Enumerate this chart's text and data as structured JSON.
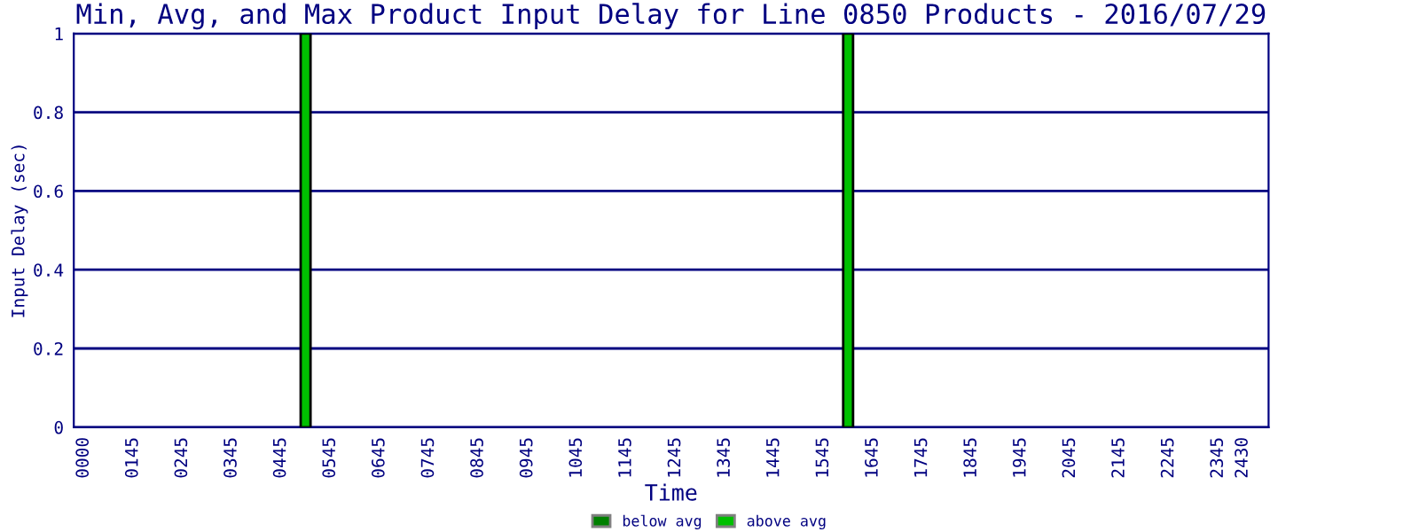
{
  "chart_data": {
    "type": "bar",
    "title": "Min, Avg, and Max Product Input Delay for Line 0850 Products - 2016/07/29",
    "xlabel": "Time",
    "ylabel": "Input Delay (sec)",
    "categories": [
      "0000",
      null,
      "0145",
      null,
      "0245",
      null,
      "0345",
      null,
      "0445",
      null,
      "0545",
      null,
      "0645",
      null,
      "0745",
      null,
      "0845",
      null,
      "0945",
      null,
      "1045",
      null,
      "1145",
      null,
      "1245",
      null,
      "1345",
      null,
      "1445",
      null,
      "1545",
      null,
      "1645",
      null,
      "1745",
      null,
      "1845",
      null,
      "1945",
      null,
      "2045",
      null,
      "2145",
      null,
      "2245",
      null,
      "2345",
      "2430"
    ],
    "stacked": true,
    "series": [
      {
        "name": "below avg",
        "color": "#008000",
        "values": [
          null,
          null,
          null,
          null,
          null,
          null,
          null,
          null,
          null,
          0,
          null,
          null,
          null,
          null,
          null,
          null,
          null,
          null,
          null,
          null,
          null,
          null,
          null,
          null,
          null,
          null,
          null,
          null,
          null,
          null,
          null,
          0,
          null,
          null,
          null,
          null,
          null,
          null,
          null,
          null,
          null,
          null,
          null,
          null,
          null,
          null,
          null,
          null
        ]
      },
      {
        "name": "above avg",
        "color": "#00c000",
        "values": [
          null,
          null,
          null,
          null,
          null,
          null,
          null,
          null,
          null,
          1,
          null,
          null,
          null,
          null,
          null,
          null,
          null,
          null,
          null,
          null,
          null,
          null,
          null,
          null,
          null,
          null,
          null,
          null,
          null,
          null,
          null,
          1,
          null,
          null,
          null,
          null,
          null,
          null,
          null,
          null,
          null,
          null,
          null,
          null,
          null,
          null,
          null,
          null
        ]
      }
    ],
    "ylim": [
      0,
      1
    ],
    "yticks": [
      0,
      0.2,
      0.4,
      0.6,
      0.8,
      1
    ],
    "grid": "y",
    "legend": "bottom"
  }
}
